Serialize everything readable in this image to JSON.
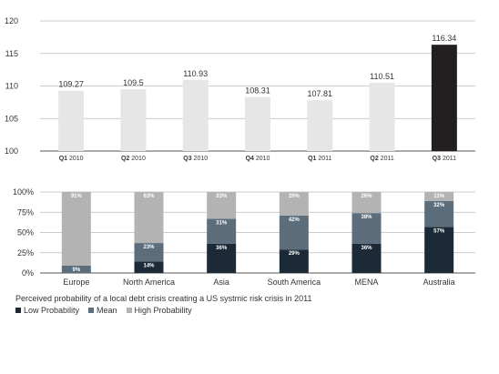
{
  "chart_data": [
    {
      "type": "bar",
      "categories": [
        {
          "bold": "Q1",
          "rest": "2010"
        },
        {
          "bold": "Q2",
          "rest": "2010"
        },
        {
          "bold": "Q3",
          "rest": "2010"
        },
        {
          "bold": "Q4",
          "rest": "2010"
        },
        {
          "bold": "Q1",
          "rest": "2011"
        },
        {
          "bold": "Q2",
          "rest": "2011"
        },
        {
          "bold": "Q3",
          "rest": "2011"
        }
      ],
      "values": [
        109.27,
        109.5,
        110.93,
        108.31,
        107.81,
        110.51,
        116.34
      ],
      "value_labels": [
        "109.27",
        "109.5",
        "110.93",
        "108.31",
        "107.81",
        "110.51",
        "116.34"
      ],
      "yticks": [
        "100",
        "105",
        "110",
        "115",
        "120"
      ],
      "ylim": [
        100,
        120
      ],
      "grid": true,
      "colors": {
        "default": "#e6e6e6",
        "highlight": "#231f20"
      },
      "highlight_index": 6
    },
    {
      "type": "bar",
      "stacked": true,
      "categories": [
        "Europe",
        "North America",
        "Asia",
        "South America",
        "MENA",
        "Australia"
      ],
      "series": [
        {
          "name": "Low Probability",
          "color": "#1b2a36",
          "values": [
            0,
            14,
            36,
            29,
            36,
            57
          ],
          "labels": [
            "",
            "14%",
            "36%",
            "29%",
            "36%",
            "57%"
          ]
        },
        {
          "name": "Mean",
          "color": "#5c6d7b",
          "values": [
            9,
            23,
            31,
            42,
            38,
            32
          ],
          "labels": [
            "9%",
            "23%",
            "31%",
            "42%",
            "38%",
            "32%"
          ]
        },
        {
          "name": "High Probability",
          "color": "#b3b3b3",
          "values": [
            91,
            63,
            33,
            29,
            26,
            11
          ],
          "labels": [
            "91%",
            "63%",
            "33%",
            "29%",
            "26%",
            "11%"
          ]
        }
      ],
      "yticks": [
        "0%",
        "25%",
        "50%",
        "75%",
        "100%"
      ],
      "ylim": [
        0,
        100
      ],
      "grid": true,
      "caption": "Perceived probability of a local debt crisis creating a US systmic risk crisis in 2011",
      "legend": "bottom-left"
    }
  ]
}
